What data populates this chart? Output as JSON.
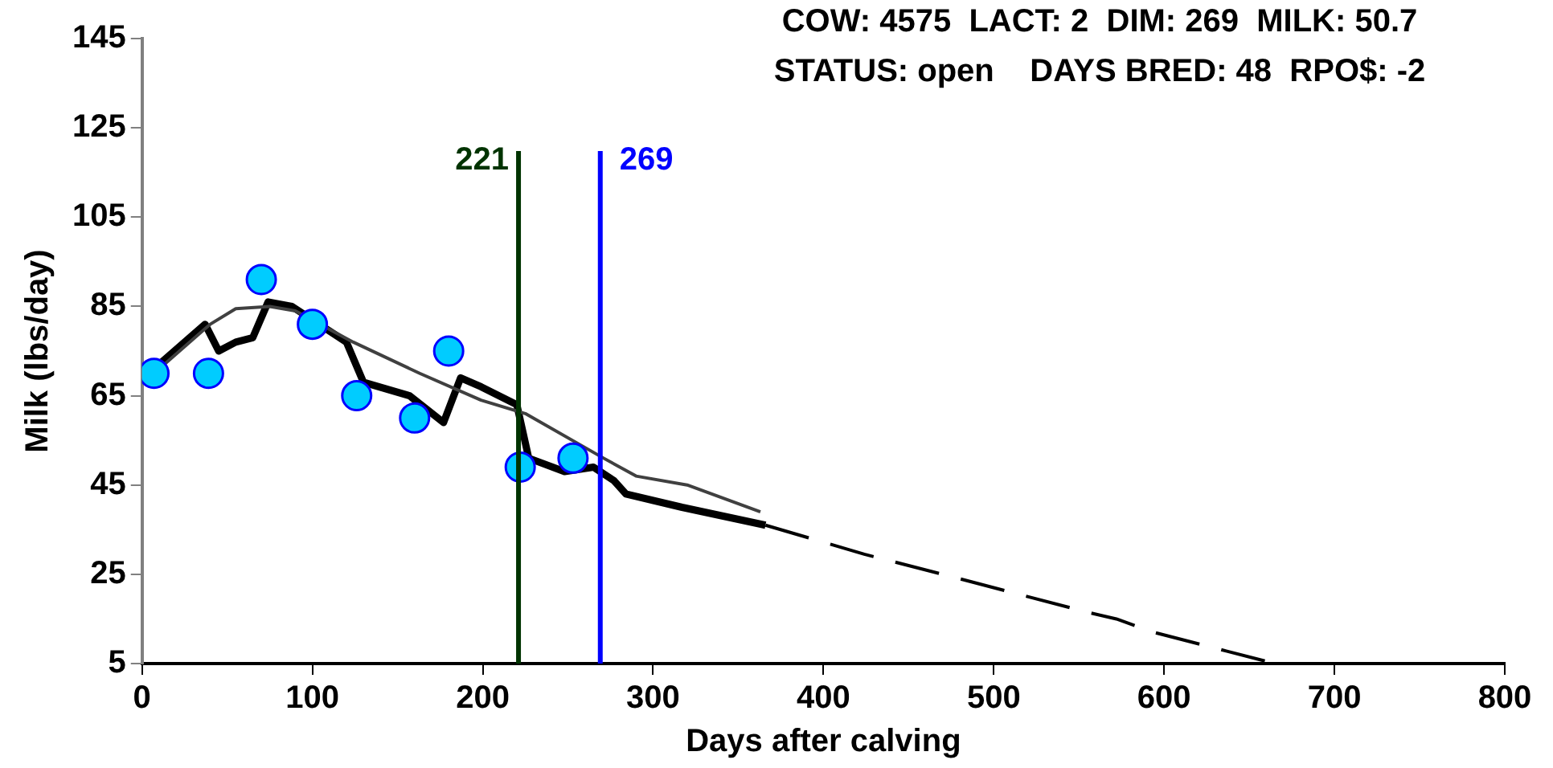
{
  "chart_data": {
    "type": "line",
    "title": "COW: 4575  LACT: 2  DIM: 269  MILK: 50.7",
    "subtitle": "STATUS: open    DAYS BRED: 48  RPO$: -2",
    "xlabel": "Days after calving",
    "ylabel": "Milk (lbs/day)",
    "xlim": [
      0,
      800
    ],
    "xticks": [
      0,
      100,
      200,
      300,
      400,
      500,
      600,
      700,
      800
    ],
    "ylim": [
      5,
      145
    ],
    "yticks": [
      5,
      25,
      45,
      65,
      85,
      105,
      125,
      145
    ],
    "grid": false,
    "legend": false,
    "series": [
      {
        "type": "line",
        "color": "#000000",
        "marker": "none",
        "line_style": "solid",
        "x": [
          7,
          37,
          45,
          55,
          65,
          74,
          88,
          120,
          130,
          157,
          177,
          187,
          199,
          220,
          227,
          248,
          265,
          277,
          284,
          317,
          366
        ],
        "values": [
          71,
          81,
          75,
          77,
          78,
          86,
          85,
          77,
          68,
          65,
          59,
          69,
          67,
          63,
          51,
          48,
          49,
          46,
          43,
          40,
          36
        ]
      },
      {
        "type": "line",
        "color": "#404040",
        "marker": "none",
        "line_style": "solid",
        "x": [
          10,
          40,
          55,
          75,
          90,
          124,
          163,
          199,
          225,
          271,
          290,
          320,
          363
        ],
        "values": [
          71,
          81,
          84.5,
          85,
          84,
          77,
          70,
          64,
          61,
          51,
          47,
          45,
          39
        ]
      },
      {
        "type": "line",
        "color": "#000000",
        "marker": "none",
        "line_style": "dashed",
        "x": [
          366,
          424,
          480,
          555,
          572,
          594,
          665
        ],
        "values": [
          36,
          29.5,
          24,
          16.5,
          15,
          12,
          5
        ]
      },
      {
        "type": "scatter",
        "color": "#00ccff",
        "marker": "circle",
        "x": [
          7,
          39,
          70,
          100,
          126,
          160,
          180,
          222,
          253
        ],
        "values": [
          70,
          70,
          91,
          81,
          65,
          60,
          75,
          49,
          51
        ]
      }
    ],
    "ref_lines": [
      {
        "axis": "x",
        "value": 221,
        "label": "221",
        "color": "#003300"
      },
      {
        "axis": "x",
        "value": 269,
        "label": "269",
        "color": "#0000ff"
      }
    ]
  }
}
